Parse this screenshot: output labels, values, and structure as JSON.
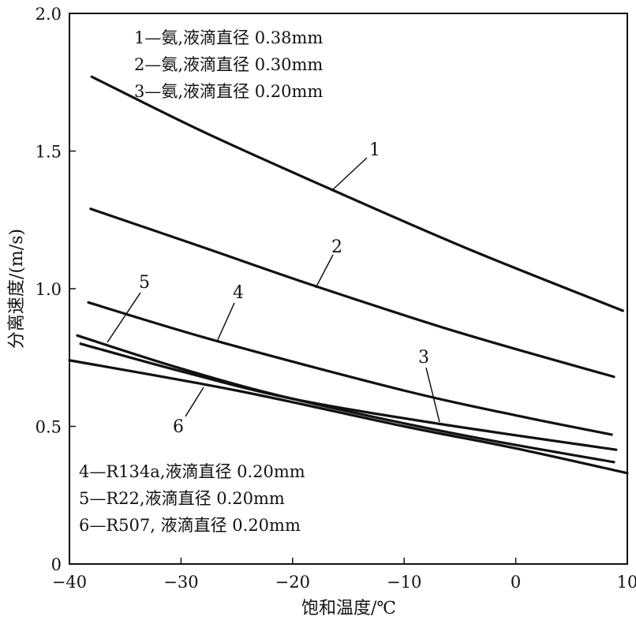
{
  "chart_data": {
    "type": "line",
    "title": "",
    "xlabel": "饱和温度/℃",
    "ylabel": "分离速度/(m/s)",
    "xlim": [
      -40,
      10
    ],
    "ylim": [
      0,
      2.0
    ],
    "xticks": [
      -40,
      -30,
      -20,
      -10,
      0,
      10
    ],
    "xtick_labels": [
      "−40",
      "−30",
      "−20",
      "−10",
      "0",
      "10"
    ],
    "yticks": [
      0,
      0.5,
      1.0,
      1.5,
      2.0
    ],
    "ytick_labels": [
      "0",
      "0.5",
      "1.0",
      "1.5",
      "2.0"
    ],
    "grid": false,
    "legend_top": [
      "1—氨,液滴直径 0.38mm",
      "2—氨,液滴直径 0.30mm",
      "3—氨,液滴直径 0.20mm"
    ],
    "legend_bottom": [
      "4—R134a,液滴直径 0.20mm",
      "5—R22,液滴直径 0.20mm",
      "6—R507, 液滴直径 0.20mm"
    ],
    "series": [
      {
        "name": "1",
        "label": "1",
        "x": [
          -38,
          -28,
          -16.5,
          -4,
          9.6
        ],
        "y": [
          1.77,
          1.57,
          1.36,
          1.14,
          0.92
        ]
      },
      {
        "name": "2",
        "label": "2",
        "x": [
          -38.1,
          -28,
          -18,
          -5,
          8.8
        ],
        "y": [
          1.29,
          1.15,
          1.01,
          0.84,
          0.68
        ]
      },
      {
        "name": "3",
        "label": "3",
        "x": [
          -39,
          -30,
          -20,
          -7,
          9
        ],
        "y": [
          0.8,
          0.7,
          0.6,
          0.51,
          0.415
        ]
      },
      {
        "name": "4",
        "label": "4",
        "x": [
          -38.3,
          -26.8,
          -10,
          0,
          8.6
        ],
        "y": [
          0.95,
          0.81,
          0.63,
          0.54,
          0.47
        ]
      },
      {
        "name": "5",
        "label": "5",
        "x": [
          -39.3,
          -30,
          -20,
          -5,
          8.8
        ],
        "y": [
          0.83,
          0.71,
          0.6,
          0.47,
          0.37
        ]
      },
      {
        "name": "6",
        "label": "6",
        "x": [
          -40,
          -25,
          -10,
          0,
          10
        ],
        "y": [
          0.74,
          0.63,
          0.5,
          0.42,
          0.33
        ]
      }
    ]
  }
}
